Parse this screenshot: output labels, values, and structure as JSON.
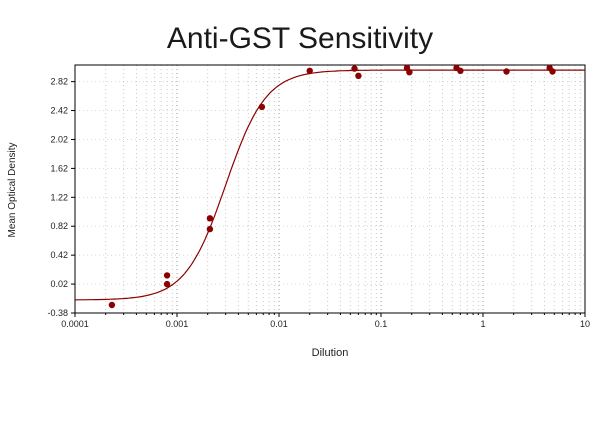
{
  "title": "Anti-GST Sensitivity",
  "chart_data": {
    "type": "scatter",
    "title": "Anti-GST Sensitivity",
    "xlabel": "Dilution",
    "ylabel": "Mean Optical Density",
    "x_scale": "log",
    "xlim": [
      0.0001,
      10
    ],
    "ylim": [
      -0.38,
      3.05
    ],
    "x_ticks": [
      0.0001,
      0.001,
      0.01,
      0.1,
      1,
      10
    ],
    "x_tick_labels": [
      "0.0001",
      "0.001",
      "0.01",
      "0.1",
      "1",
      "10"
    ],
    "y_ticks": [
      2.82,
      2.42,
      2.02,
      1.62,
      1.22,
      0.82,
      0.42,
      0.02,
      -0.38
    ],
    "y_tick_labels": [
      "2.82",
      "2.42",
      "2.02",
      "1.62",
      "1.22",
      "0.82",
      "0.42",
      "0.02",
      "-0.38"
    ],
    "grid": "dotted vertical log-minor lines and dotted horizontal tick lines",
    "legend": "none",
    "series": [
      {
        "name": "Anti-GST",
        "points": [
          [
            0.00023,
            -0.27
          ],
          [
            0.0008,
            0.14
          ],
          [
            0.0008,
            0.02
          ],
          [
            0.0021,
            0.93
          ],
          [
            0.0021,
            0.78
          ],
          [
            0.0068,
            2.47
          ],
          [
            0.02,
            2.97
          ],
          [
            0.055,
            3.0
          ],
          [
            0.06,
            2.9
          ],
          [
            0.18,
            3.01
          ],
          [
            0.19,
            2.95
          ],
          [
            0.55,
            3.01
          ],
          [
            0.6,
            2.97
          ],
          [
            1.7,
            2.96
          ],
          [
            4.5,
            3.01
          ],
          [
            4.8,
            2.96
          ]
        ]
      }
    ],
    "curve_fit": {
      "model": "4PL sigmoid",
      "bottom": -0.2,
      "top": 2.98,
      "ec50": 0.003,
      "hill": 2.2
    },
    "colors": {
      "series": "#8B0000",
      "grid_minor": "#b0b0b0",
      "grid_major": "#909090",
      "axis": "#000000",
      "background": "#ffffff"
    }
  }
}
